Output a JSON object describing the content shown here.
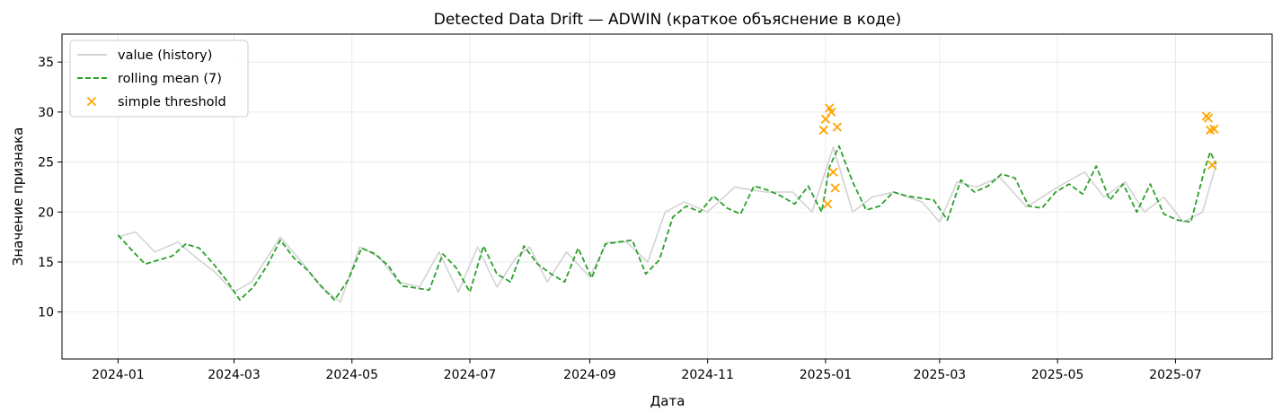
{
  "chart_data": {
    "type": "line",
    "title": "Detected Data Drift — ADWIN (краткое объяснение в коде)",
    "xlabel": "Дата",
    "ylabel": "Значение признака",
    "x_start": "2024-01-01",
    "x_end": "2025-07-22",
    "xlim": [
      "2023-12-03",
      "2025-08-20"
    ],
    "ylim": [
      5.3,
      37.8
    ],
    "x_ticks": [
      {
        "date": "2024-01-01",
        "label": "2024-01"
      },
      {
        "date": "2024-03-01",
        "label": "2024-03"
      },
      {
        "date": "2024-05-01",
        "label": "2024-05"
      },
      {
        "date": "2024-07-01",
        "label": "2024-07"
      },
      {
        "date": "2024-09-01",
        "label": "2024-09"
      },
      {
        "date": "2024-11-01",
        "label": "2024-11"
      },
      {
        "date": "2025-01-01",
        "label": "2025-01"
      },
      {
        "date": "2025-03-01",
        "label": "2025-03"
      },
      {
        "date": "2025-05-01",
        "label": "2025-05"
      },
      {
        "date": "2025-07-01",
        "label": "2025-07"
      }
    ],
    "y_ticks": [
      10,
      15,
      20,
      25,
      30,
      35
    ],
    "grid": true,
    "legend_position": "top-left",
    "series": [
      {
        "name": "value (history)",
        "style": "line",
        "color": "#d3d3d3",
        "points": [
          [
            "2024-01-01",
            17.5
          ],
          [
            "2024-01-10",
            18.0
          ],
          [
            "2024-01-20",
            16.0
          ],
          [
            "2024-02-01",
            17.0
          ],
          [
            "2024-02-10",
            15.5
          ],
          [
            "2024-02-20",
            14.0
          ],
          [
            "2024-03-01",
            12.0
          ],
          [
            "2024-03-10",
            13.0
          ],
          [
            "2024-03-20",
            16.0
          ],
          [
            "2024-03-25",
            17.5
          ],
          [
            "2024-04-05",
            15.0
          ],
          [
            "2024-04-15",
            12.5
          ],
          [
            "2024-04-25",
            11.0
          ],
          [
            "2024-05-05",
            16.5
          ],
          [
            "2024-05-15",
            15.5
          ],
          [
            "2024-05-25",
            13.0
          ],
          [
            "2024-06-05",
            12.5
          ],
          [
            "2024-06-15",
            16.0
          ],
          [
            "2024-06-25",
            12.0
          ],
          [
            "2024-07-05",
            16.5
          ],
          [
            "2024-07-15",
            12.5
          ],
          [
            "2024-07-25",
            15.5
          ],
          [
            "2024-08-01",
            16.5
          ],
          [
            "2024-08-10",
            13.0
          ],
          [
            "2024-08-20",
            16.0
          ],
          [
            "2024-09-01",
            13.5
          ],
          [
            "2024-09-10",
            17.0
          ],
          [
            "2024-09-20",
            17.0
          ],
          [
            "2024-10-01",
            15.0
          ],
          [
            "2024-10-10",
            20.0
          ],
          [
            "2024-10-20",
            21.0
          ],
          [
            "2024-11-01",
            20.0
          ],
          [
            "2024-11-15",
            22.5
          ],
          [
            "2024-12-01",
            22.0
          ],
          [
            "2024-12-15",
            22.0
          ],
          [
            "2024-12-25",
            20.0
          ],
          [
            "2025-01-05",
            26.5
          ],
          [
            "2025-01-15",
            20.0
          ],
          [
            "2025-01-25",
            21.5
          ],
          [
            "2025-02-05",
            22.0
          ],
          [
            "2025-02-20",
            21.0
          ],
          [
            "2025-03-01",
            19.0
          ],
          [
            "2025-03-10",
            23.0
          ],
          [
            "2025-03-20",
            22.5
          ],
          [
            "2025-04-01",
            23.5
          ],
          [
            "2025-04-15",
            20.5
          ],
          [
            "2025-05-01",
            22.5
          ],
          [
            "2025-05-15",
            24.0
          ],
          [
            "2025-05-25",
            21.5
          ],
          [
            "2025-06-05",
            23.0
          ],
          [
            "2025-06-15",
            20.0
          ],
          [
            "2025-06-25",
            21.5
          ],
          [
            "2025-07-05",
            19.0
          ],
          [
            "2025-07-15",
            20.0
          ],
          [
            "2025-07-22",
            24.7
          ]
        ]
      },
      {
        "name": "rolling mean (7)",
        "style": "dashed",
        "color": "#2ca02c",
        "points": [
          [
            "2024-01-01",
            17.7
          ],
          [
            "2024-01-08",
            16.2
          ],
          [
            "2024-01-15",
            14.8
          ],
          [
            "2024-01-22",
            15.2
          ],
          [
            "2024-01-29",
            15.6
          ],
          [
            "2024-02-05",
            16.8
          ],
          [
            "2024-02-12",
            16.4
          ],
          [
            "2024-02-19",
            14.9
          ],
          [
            "2024-02-26",
            13.2
          ],
          [
            "2024-03-04",
            11.2
          ],
          [
            "2024-03-11",
            12.5
          ],
          [
            "2024-03-18",
            14.6
          ],
          [
            "2024-03-25",
            17.2
          ],
          [
            "2024-04-01",
            15.4
          ],
          [
            "2024-04-08",
            14.2
          ],
          [
            "2024-04-15",
            12.6
          ],
          [
            "2024-04-22",
            11.2
          ],
          [
            "2024-04-29",
            13.2
          ],
          [
            "2024-05-06",
            16.4
          ],
          [
            "2024-05-13",
            15.8
          ],
          [
            "2024-05-20",
            14.6
          ],
          [
            "2024-05-27",
            12.6
          ],
          [
            "2024-06-03",
            12.4
          ],
          [
            "2024-06-10",
            12.2
          ],
          [
            "2024-06-17",
            15.8
          ],
          [
            "2024-06-24",
            14.4
          ],
          [
            "2024-07-01",
            12.0
          ],
          [
            "2024-07-08",
            16.6
          ],
          [
            "2024-07-15",
            13.8
          ],
          [
            "2024-07-22",
            13.0
          ],
          [
            "2024-07-29",
            16.6
          ],
          [
            "2024-08-05",
            14.8
          ],
          [
            "2024-08-12",
            13.8
          ],
          [
            "2024-08-19",
            13.0
          ],
          [
            "2024-08-26",
            16.4
          ],
          [
            "2024-09-02",
            13.4
          ],
          [
            "2024-09-09",
            16.8
          ],
          [
            "2024-09-16",
            17.0
          ],
          [
            "2024-09-23",
            17.2
          ],
          [
            "2024-09-30",
            13.8
          ],
          [
            "2024-10-07",
            15.2
          ],
          [
            "2024-10-14",
            19.5
          ],
          [
            "2024-10-21",
            20.6
          ],
          [
            "2024-10-28",
            20.0
          ],
          [
            "2024-11-04",
            21.6
          ],
          [
            "2024-11-11",
            20.4
          ],
          [
            "2024-11-18",
            19.8
          ],
          [
            "2024-11-25",
            22.6
          ],
          [
            "2024-12-02",
            22.2
          ],
          [
            "2024-12-09",
            21.6
          ],
          [
            "2024-12-16",
            20.8
          ],
          [
            "2024-12-23",
            22.6
          ],
          [
            "2024-12-30",
            20.0
          ],
          [
            "2025-01-03",
            24.5
          ],
          [
            "2025-01-08",
            26.6
          ],
          [
            "2025-01-15",
            23.0
          ],
          [
            "2025-01-22",
            20.2
          ],
          [
            "2025-01-29",
            20.6
          ],
          [
            "2025-02-05",
            22.0
          ],
          [
            "2025-02-12",
            21.6
          ],
          [
            "2025-02-19",
            21.4
          ],
          [
            "2025-02-26",
            21.2
          ],
          [
            "2025-03-05",
            19.2
          ],
          [
            "2025-03-12",
            23.2
          ],
          [
            "2025-03-19",
            22.0
          ],
          [
            "2025-03-26",
            22.6
          ],
          [
            "2025-04-02",
            23.8
          ],
          [
            "2025-04-09",
            23.4
          ],
          [
            "2025-04-16",
            20.6
          ],
          [
            "2025-04-23",
            20.4
          ],
          [
            "2025-04-30",
            22.0
          ],
          [
            "2025-05-07",
            22.8
          ],
          [
            "2025-05-14",
            21.8
          ],
          [
            "2025-05-21",
            24.6
          ],
          [
            "2025-05-28",
            21.2
          ],
          [
            "2025-06-04",
            22.8
          ],
          [
            "2025-06-11",
            20.0
          ],
          [
            "2025-06-18",
            22.8
          ],
          [
            "2025-06-25",
            19.8
          ],
          [
            "2025-07-02",
            19.2
          ],
          [
            "2025-07-09",
            19.0
          ],
          [
            "2025-07-16",
            24.2
          ],
          [
            "2025-07-19",
            26.0
          ],
          [
            "2025-07-22",
            24.8
          ]
        ]
      },
      {
        "name": "simple threshold",
        "style": "scatter",
        "color": "#ffa500",
        "points": [
          [
            "2024-12-31",
            28.2
          ],
          [
            "2025-01-01",
            29.3
          ],
          [
            "2025-01-02",
            20.8
          ],
          [
            "2025-01-03",
            30.4
          ],
          [
            "2025-01-04",
            30.0
          ],
          [
            "2025-01-05",
            24.0
          ],
          [
            "2025-01-06",
            22.4
          ],
          [
            "2025-01-07",
            28.5
          ],
          [
            "2025-07-17",
            29.6
          ],
          [
            "2025-07-18",
            29.4
          ],
          [
            "2025-07-19",
            28.2
          ],
          [
            "2025-07-20",
            24.7
          ],
          [
            "2025-07-21",
            28.3
          ]
        ]
      }
    ]
  }
}
